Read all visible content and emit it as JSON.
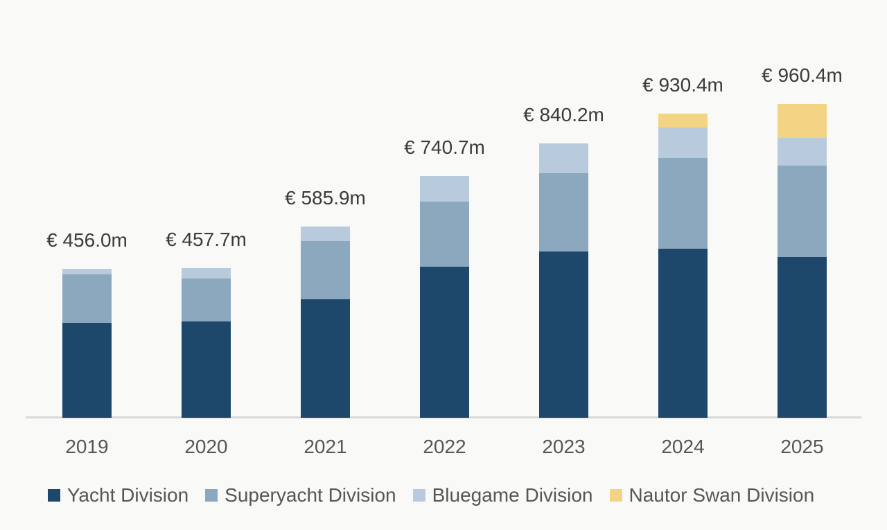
{
  "chart_data": {
    "type": "bar",
    "stacked": true,
    "title": "",
    "xlabel": "",
    "ylabel": "",
    "grid": false,
    "legend_position": "bottom",
    "value_label_format": "€ {total}m",
    "categories": [
      "2019",
      "2020",
      "2021",
      "2022",
      "2023",
      "2024",
      "2025"
    ],
    "series": [
      {
        "name": "Yacht Division",
        "color": "#1d486b",
        "values": [
          291.1,
          294.5,
          361.6,
          462.2,
          509.0,
          518.0,
          492.0
        ]
      },
      {
        "name": "Superyacht Division",
        "color": "#8ba8be",
        "values": [
          147.2,
          132.7,
          178.5,
          199.2,
          238.4,
          278.0,
          280.0
        ]
      },
      {
        "name": "Bluegame Division",
        "color": "#b8cbdd",
        "values": [
          17.7,
          30.5,
          45.8,
          79.3,
          92.8,
          93.0,
          85.0
        ]
      },
      {
        "name": "Nautor Swan Division",
        "color": "#f3d484",
        "values": [
          0,
          0,
          0,
          0,
          0,
          41.4,
          103.4
        ]
      }
    ],
    "totals": [
      456.0,
      457.7,
      585.9,
      740.7,
      840.2,
      930.4,
      960.4
    ],
    "total_labels": [
      "€ 456.0m",
      "€ 457.7m",
      "€ 585.9m",
      "€ 740.7m",
      "€ 840.2m",
      "€ 930.4m",
      "€ 960.4m"
    ],
    "ylim": [
      0,
      1020
    ]
  },
  "legend": {
    "items": [
      {
        "label": "Yacht Division",
        "color": "#1d486b"
      },
      {
        "label": "Superyacht Division",
        "color": "#8ba8be"
      },
      {
        "label": "Bluegame Division",
        "color": "#b8cbdd"
      },
      {
        "label": "Nautor Swan Division",
        "color": "#f3d484"
      }
    ]
  },
  "style": {
    "background": "#f9f9f8",
    "axis_line_color": "#d9d9d9",
    "value_label_color": "#3b3b3b",
    "category_label_color": "#565656",
    "legend_text_color": "#565656"
  }
}
